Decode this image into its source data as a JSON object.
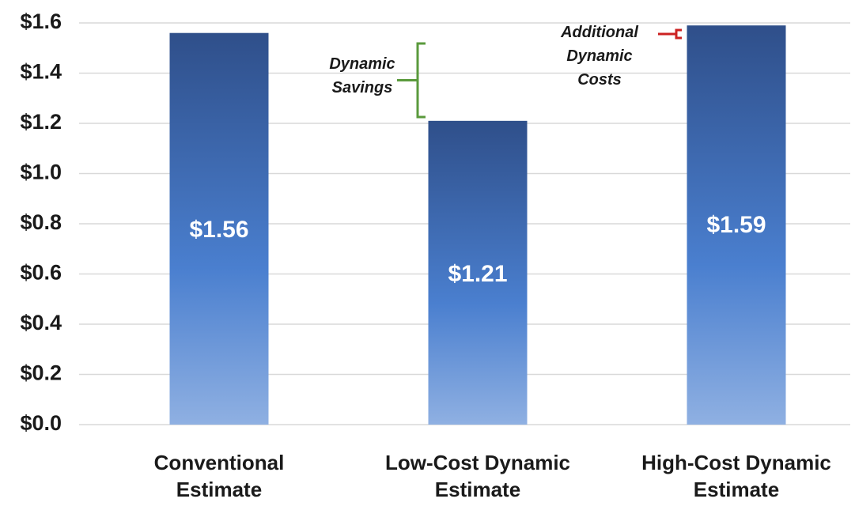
{
  "chart_data": {
    "type": "bar",
    "categories": [
      "Conventional Estimate",
      "Low-Cost Dynamic Estimate",
      "High-Cost Dynamic Estimate"
    ],
    "values": [
      1.56,
      1.21,
      1.59
    ],
    "value_labels": [
      "$1.56",
      "$1.21",
      "$1.59"
    ],
    "color": "#4a7fcf",
    "ylim": [
      0,
      1.6
    ],
    "yticks": [
      {
        "value": 0,
        "label": "$0.0"
      },
      {
        "value": 0.2,
        "label": "$0.2"
      },
      {
        "value": 0.4,
        "label": "$0.4"
      },
      {
        "value": 0.6,
        "label": "$0.6"
      },
      {
        "value": 0.8,
        "label": "$0.8"
      },
      {
        "value": 1.0,
        "label": "$1.0"
      },
      {
        "value": 1.2,
        "label": "$1.2"
      },
      {
        "value": 1.4,
        "label": "$1.4"
      },
      {
        "value": 1.6,
        "label": "$1.6"
      }
    ],
    "grid": true,
    "annotations": [
      "Dynamic Savings",
      "Additional Dynamic Costs"
    ]
  }
}
